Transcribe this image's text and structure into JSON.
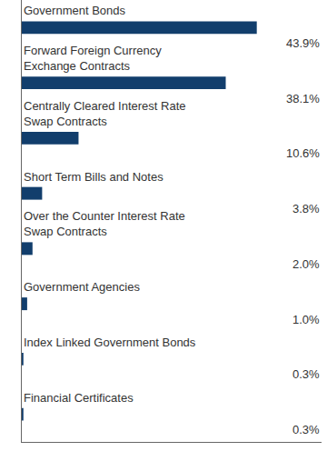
{
  "chart_data": {
    "type": "bar",
    "orientation": "horizontal",
    "categories": [
      "Government Bonds",
      "Forward Foreign Currency Exchange Contracts",
      "Centrally Cleared Interest Rate Swap Contracts",
      "Short Term Bills and Notes",
      "Over the Counter Interest Rate Swap Contracts",
      "Government Agencies",
      "Index Linked Government Bonds",
      "Financial Certificates"
    ],
    "values": [
      43.9,
      38.1,
      10.6,
      3.8,
      2.0,
      1.0,
      0.3,
      0.3
    ],
    "value_labels": [
      "43.9%",
      "38.1%",
      "10.6%",
      "3.8%",
      "2.0%",
      "1.0%",
      "0.3%",
      "0.3%"
    ],
    "color": "#123e6c",
    "xlim": [
      0,
      56
    ],
    "data_labels": true,
    "tick_labels": false,
    "grid": false
  }
}
